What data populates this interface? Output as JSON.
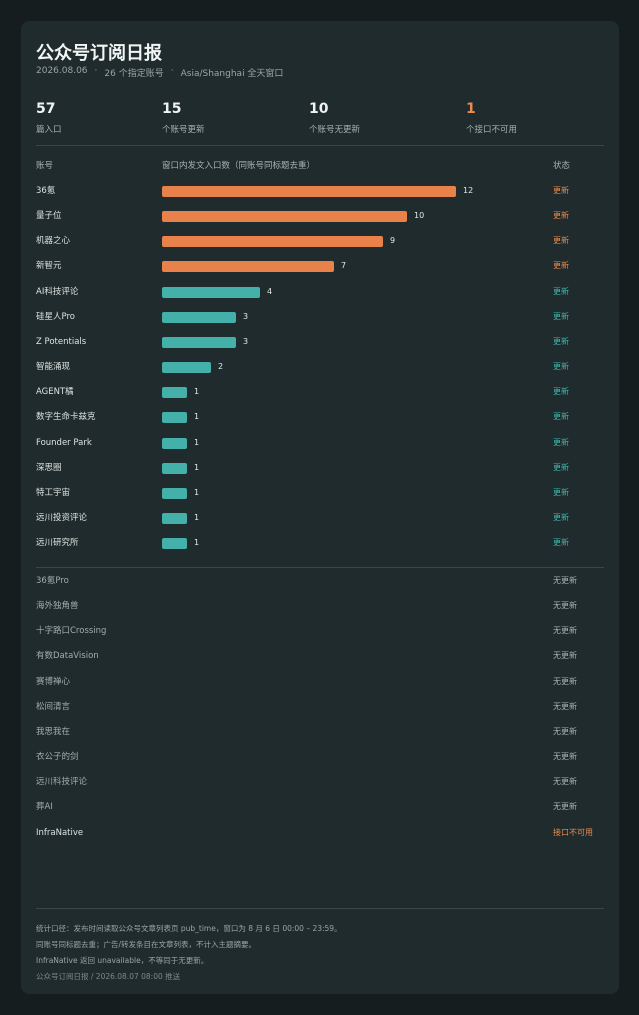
{
  "title": "公众号订阅日报",
  "subtitle": {
    "date": "2026.08.06",
    "sep": "·",
    "accounts": "26 个指定账号",
    "window": "Asia/Shanghai 全天窗口"
  },
  "stats": [
    {
      "value": "57",
      "label": "篇入口",
      "warn": false
    },
    {
      "value": "15",
      "label": "个账号更新",
      "warn": false
    },
    {
      "value": "10",
      "label": "个账号无更新",
      "warn": false
    },
    {
      "value": "1",
      "label": "个接口不可用",
      "warn": true
    }
  ],
  "columns": {
    "account": "账号",
    "count": "窗口内发文入口数（同账号同标题去重）",
    "status": "状态"
  },
  "colors": {
    "bar_high": "#e8824a",
    "bar_low": "#43b1aa",
    "status_hot": "#ee8a4d",
    "status_updated": "#3fb8ae"
  },
  "chart_data": {
    "type": "bar",
    "orientation": "horizontal",
    "categories": [
      "36氪",
      "量子位",
      "机器之心",
      "新智元",
      "AI科技评论",
      "硅星人Pro",
      "Z Potentials",
      "智能涌现",
      "AGENT橘",
      "数字生命卡兹克",
      "Founder Park",
      "深思圈",
      "特工宇宙",
      "远川投资评论",
      "远川研究所"
    ],
    "values": [
      12,
      10,
      9,
      7,
      4,
      3,
      3,
      2,
      1,
      1,
      1,
      1,
      1,
      1,
      1
    ],
    "status": [
      "更新",
      "更新",
      "更新",
      "更新",
      "更新",
      "更新",
      "更新",
      "更新",
      "更新",
      "更新",
      "更新",
      "更新",
      "更新",
      "更新",
      "更新"
    ],
    "xlim": [
      0,
      12
    ]
  },
  "no_update_rows": [
    {
      "name": "36氪Pro",
      "status": "无更新",
      "kind": "none"
    },
    {
      "name": "海外独角兽",
      "status": "无更新",
      "kind": "none"
    },
    {
      "name": "十字路口Crossing",
      "status": "无更新",
      "kind": "none"
    },
    {
      "name": "有数DataVision",
      "status": "无更新",
      "kind": "none"
    },
    {
      "name": "赛博禅心",
      "status": "无更新",
      "kind": "none"
    },
    {
      "name": "松间清言",
      "status": "无更新",
      "kind": "none"
    },
    {
      "name": "我思我在",
      "status": "无更新",
      "kind": "none"
    },
    {
      "name": "衣公子的剑",
      "status": "无更新",
      "kind": "none"
    },
    {
      "name": "远川科技评论",
      "status": "无更新",
      "kind": "none"
    },
    {
      "name": "葬AI",
      "status": "无更新",
      "kind": "none"
    },
    {
      "name": "InfraNative",
      "status": "接口不可用",
      "kind": "down"
    }
  ],
  "footer": [
    "统计口径：发布时间读取公众号文章列表页 pub_time，窗口为 8 月 6 日 00:00 – 23:59。",
    "同账号同标题去重；广告/转发条目在文章列表，不计入主题摘要。",
    "InfraNative 返回 unavailable，不等同于无更新。",
    "公众号订阅日报 / 2026.08.07 08:00 推送"
  ]
}
